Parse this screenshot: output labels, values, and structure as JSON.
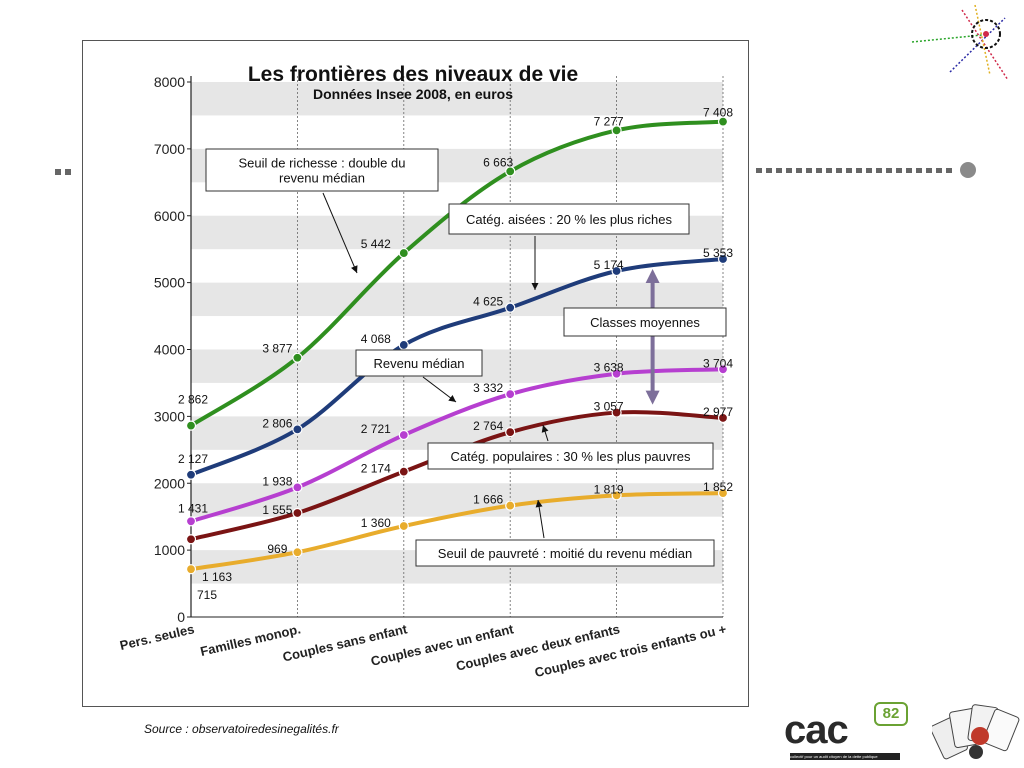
{
  "chart_data": {
    "type": "line",
    "title": "Les frontières des niveaux de vie",
    "subtitle": "Données Insee 2008, en euros",
    "categories": [
      "Pers. seules",
      "Familles monop.",
      "Couples sans enfant",
      "Couples avec un enfant",
      "Couples avec deux enfants",
      "Couples avec trois enfants ou +"
    ],
    "ylim": [
      0,
      8000
    ],
    "yticks": [
      0,
      1000,
      2000,
      3000,
      4000,
      5000,
      6000,
      7000,
      8000
    ],
    "grid": "horizontal bands",
    "series": [
      {
        "key": "richesse",
        "color": "#2f8f1f",
        "values": [
          2862,
          3877,
          5442,
          6663,
          7277,
          7408
        ],
        "labels": [
          "2 862",
          "3 877",
          "5 442",
          "6 663",
          "7 277",
          "7 408"
        ]
      },
      {
        "key": "aisees",
        "color": "#1f3c7a",
        "values": [
          2127,
          2806,
          4068,
          4625,
          5174,
          5353
        ],
        "labels": [
          "2 127",
          "2 806",
          "4 068",
          "4 625",
          "5 174",
          "5 353"
        ]
      },
      {
        "key": "median",
        "color": "#b63fd0",
        "values": [
          1431,
          1938,
          2721,
          3332,
          3638,
          3704
        ],
        "labels": [
          "1 431",
          "1 938",
          "2 721",
          "3 332",
          "3 638",
          "3 704"
        ]
      },
      {
        "key": "populaires",
        "color": "#7a1414",
        "values": [
          1163,
          1555,
          2174,
          2764,
          3057,
          2977
        ],
        "labels": [
          "1 163",
          "1 555",
          "2 174",
          "2 764",
          "3 057",
          "2 977"
        ]
      },
      {
        "key": "pauvrete",
        "color": "#e8ac2c",
        "values": [
          715,
          969,
          1360,
          1666,
          1819,
          1852
        ],
        "labels": [
          "715",
          "969",
          "1 360",
          "1 666",
          "1 819",
          "1 852"
        ]
      }
    ],
    "annotations": [
      {
        "key": "richesse",
        "text": [
          "Seuil de richesse : double du",
          "revenu médian"
        ]
      },
      {
        "key": "aisees",
        "text": [
          "Catég. aisées : 20 % les plus riches"
        ]
      },
      {
        "key": "moyennes",
        "text": [
          "Classes moyennes"
        ]
      },
      {
        "key": "median",
        "text": [
          "Revenu médian"
        ]
      },
      {
        "key": "populaires",
        "text": [
          "Catég. populaires : 30 % les plus pauvres"
        ]
      },
      {
        "key": "pauvrete",
        "text": [
          "Seuil de pauvreté : moitié du revenu médian"
        ]
      }
    ]
  },
  "source": "Source : observatoiredesinegalités.fr",
  "logo": {
    "text": "cac",
    "badge": "82",
    "tagline": "collectif pour un audit citoyen de la dette publique"
  },
  "colors": {
    "slide_dots": "#666666",
    "slide_circle": "#888888"
  }
}
